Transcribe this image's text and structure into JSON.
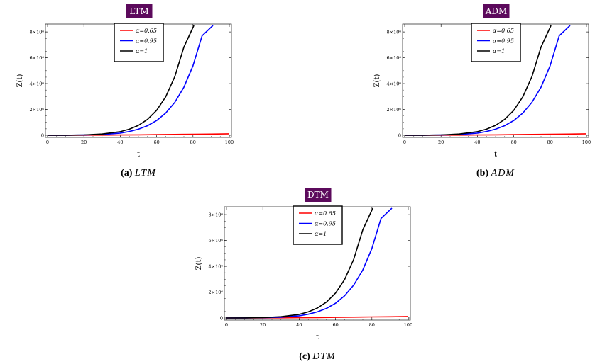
{
  "chart_data": [
    {
      "type": "line",
      "id": "a",
      "title": "LTM",
      "caption_label": "(a)",
      "caption_name": "LTM",
      "xlabel": "t",
      "ylabel": "Z(t)",
      "xlim": [
        0,
        100
      ],
      "ylim": [
        0,
        8500000
      ],
      "xticks": [
        0,
        20,
        40,
        60,
        80,
        100
      ],
      "xtick_labels": [
        "0",
        "20",
        "40",
        "60",
        "80",
        "100"
      ],
      "yticks": [
        0,
        2000000,
        4000000,
        6000000,
        8000000
      ],
      "ytick_labels": [
        "0",
        "2×10⁶",
        "4×10⁶",
        "6×10⁶",
        "8×10⁶"
      ],
      "legend_position": "top-center",
      "series": [
        {
          "name": "α=0.65",
          "color": "#ff0000",
          "x": [
            0,
            10,
            20,
            30,
            40,
            50,
            60,
            70,
            80,
            90,
            100
          ],
          "y": [
            0,
            1000,
            5000,
            12000,
            22000,
            35000,
            50000,
            65000,
            80000,
            95000,
            115000
          ]
        },
        {
          "name": "α=0.95",
          "color": "#0000ff",
          "x": [
            0,
            10,
            20,
            30,
            40,
            45,
            50,
            55,
            60,
            65,
            70,
            75,
            80,
            85,
            91
          ],
          "y": [
            0,
            5000,
            20000,
            60000,
            170000,
            290000,
            470000,
            740000,
            1140000,
            1720000,
            2550000,
            3720000,
            5380000,
            7700000,
            8500000
          ]
        },
        {
          "name": "α=1",
          "color": "#000000",
          "x": [
            0,
            10,
            20,
            30,
            40,
            45,
            50,
            55,
            60,
            65,
            70,
            75,
            80.5
          ],
          "y": [
            0,
            5000,
            30000,
            100000,
            280000,
            470000,
            770000,
            1230000,
            1930000,
            2980000,
            4540000,
            6830000,
            8500000
          ]
        }
      ]
    },
    {
      "type": "line",
      "id": "b",
      "title": "ADM",
      "caption_label": "(b)",
      "caption_name": "ADM",
      "xlabel": "t",
      "ylabel": "Z(t)",
      "xlim": [
        0,
        100
      ],
      "ylim": [
        0,
        8500000
      ],
      "xticks": [
        0,
        20,
        40,
        60,
        80,
        100
      ],
      "xtick_labels": [
        "0",
        "20",
        "40",
        "60",
        "80",
        "100"
      ],
      "yticks": [
        0,
        2000000,
        4000000,
        6000000,
        8000000
      ],
      "ytick_labels": [
        "0",
        "2×10⁶",
        "4×10⁶",
        "6×10⁶",
        "8×10⁶"
      ],
      "legend_position": "top-center",
      "series": [
        {
          "name": "α=0.65",
          "color": "#ff0000",
          "x": [
            0,
            10,
            20,
            30,
            40,
            50,
            60,
            70,
            80,
            90,
            100
          ],
          "y": [
            0,
            1000,
            5000,
            12000,
            22000,
            35000,
            50000,
            65000,
            80000,
            95000,
            115000
          ]
        },
        {
          "name": "α=0.95",
          "color": "#0000ff",
          "x": [
            0,
            10,
            20,
            30,
            40,
            45,
            50,
            55,
            60,
            65,
            70,
            75,
            80,
            85,
            91
          ],
          "y": [
            0,
            5000,
            20000,
            60000,
            170000,
            290000,
            470000,
            740000,
            1140000,
            1720000,
            2550000,
            3720000,
            5380000,
            7700000,
            8500000
          ]
        },
        {
          "name": "α=1",
          "color": "#000000",
          "x": [
            0,
            10,
            20,
            30,
            40,
            45,
            50,
            55,
            60,
            65,
            70,
            75,
            80.5
          ],
          "y": [
            0,
            5000,
            30000,
            100000,
            280000,
            470000,
            770000,
            1230000,
            1930000,
            2980000,
            4540000,
            6830000,
            8500000
          ]
        }
      ]
    },
    {
      "type": "line",
      "id": "c",
      "title": "DTM",
      "caption_label": "(c)",
      "caption_name": "DTM",
      "xlabel": "t",
      "ylabel": "Z(t)",
      "xlim": [
        0,
        100
      ],
      "ylim": [
        0,
        8500000
      ],
      "xticks": [
        0,
        20,
        40,
        60,
        80,
        100
      ],
      "xtick_labels": [
        "0",
        "20",
        "40",
        "60",
        "80",
        "100"
      ],
      "yticks": [
        0,
        2000000,
        4000000,
        6000000,
        8000000
      ],
      "ytick_labels": [
        "0",
        "2×10⁶",
        "4×10⁶",
        "6×10⁶",
        "8×10⁶"
      ],
      "legend_position": "top-center",
      "series": [
        {
          "name": "α=0.65",
          "color": "#ff0000",
          "x": [
            0,
            10,
            20,
            30,
            40,
            50,
            60,
            70,
            80,
            90,
            100
          ],
          "y": [
            0,
            1000,
            5000,
            12000,
            22000,
            35000,
            50000,
            65000,
            80000,
            95000,
            115000
          ]
        },
        {
          "name": "α=0.95",
          "color": "#0000ff",
          "x": [
            0,
            10,
            20,
            30,
            40,
            45,
            50,
            55,
            60,
            65,
            70,
            75,
            80,
            85,
            91
          ],
          "y": [
            0,
            5000,
            20000,
            60000,
            170000,
            290000,
            470000,
            740000,
            1140000,
            1720000,
            2550000,
            3720000,
            5380000,
            7700000,
            8500000
          ]
        },
        {
          "name": "α=1",
          "color": "#000000",
          "x": [
            0,
            10,
            20,
            30,
            40,
            45,
            50,
            55,
            60,
            65,
            70,
            75,
            80.5
          ],
          "y": [
            0,
            5000,
            30000,
            100000,
            280000,
            470000,
            770000,
            1230000,
            1930000,
            2980000,
            4540000,
            6830000,
            8500000
          ]
        }
      ]
    }
  ],
  "colors": {
    "title_box": "#5c0a5c",
    "axis": "#555555",
    "frame": "#333333"
  }
}
